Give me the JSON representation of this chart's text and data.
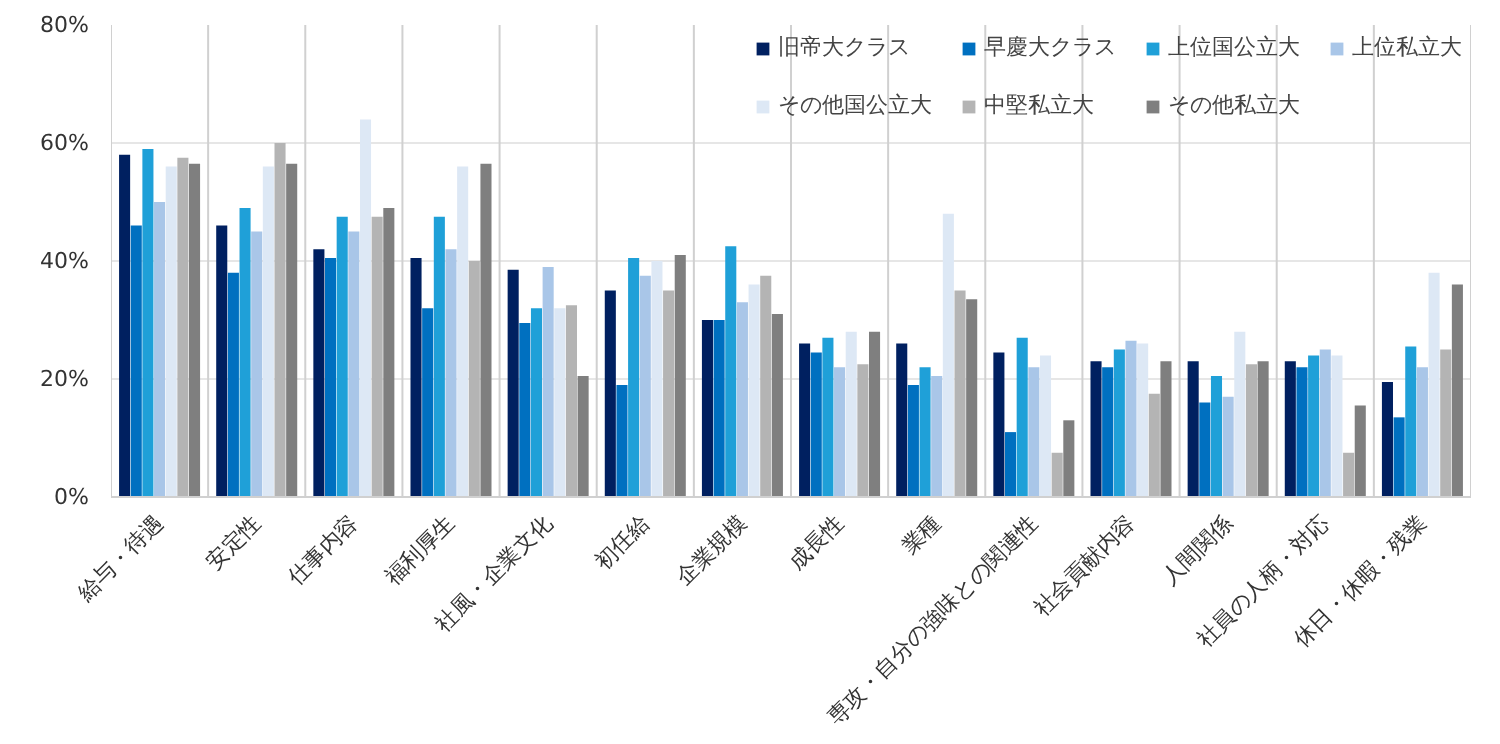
{
  "chart_data": {
    "type": "bar",
    "categories": [
      "給与・待遇",
      "安定性",
      "仕事内容",
      "福利厚生",
      "社風・企業文化",
      "初任給",
      "企業規模",
      "成長性",
      "業種",
      "専攻・自分の強味との関連性",
      "社会貢献内容",
      "人間関係",
      "社員の人柄・対応",
      "休日・休暇・残業"
    ],
    "series": [
      {
        "name": "旧帝大クラス",
        "color": "#002060",
        "values": [
          58,
          46,
          42,
          40.5,
          38.5,
          35,
          30,
          26,
          26,
          24.5,
          23,
          23,
          23,
          19.5
        ]
      },
      {
        "name": "早慶大クラス",
        "color": "#0070c0",
        "values": [
          46,
          38,
          40.5,
          32,
          29.5,
          19,
          30,
          24.5,
          19,
          11,
          22,
          16,
          22,
          13.5
        ]
      },
      {
        "name": "上位国公立大",
        "color": "#1fa0d8",
        "values": [
          59,
          49,
          47.5,
          47.5,
          32,
          40.5,
          42.5,
          27,
          22,
          27,
          25,
          20.5,
          24,
          25.5
        ]
      },
      {
        "name": "上位私立大",
        "color": "#a9c6e8",
        "values": [
          50,
          45,
          45,
          42,
          39,
          37.5,
          33,
          22,
          20.5,
          22,
          26.5,
          17,
          25,
          22
        ]
      },
      {
        "name": "その他国公立大",
        "color": "#dde8f5",
        "values": [
          56,
          56,
          64,
          56,
          32,
          40,
          36,
          28,
          48,
          24,
          26,
          28,
          24,
          38
        ]
      },
      {
        "name": "中堅私立大",
        "color": "#b4b4b4",
        "values": [
          57.5,
          60,
          47.5,
          40,
          32.5,
          35,
          37.5,
          22.5,
          35,
          7.5,
          17.5,
          22.5,
          7.5,
          25
        ]
      },
      {
        "name": "その他私立大",
        "color": "#7f7f7f",
        "values": [
          56.5,
          56.5,
          49,
          56.5,
          20.5,
          41,
          31,
          28,
          33.5,
          13,
          23,
          23,
          15.5,
          36
        ]
      }
    ],
    "ylim": [
      0,
      80
    ],
    "yticks": [
      {
        "value": 0,
        "label": "0%"
      },
      {
        "value": 20,
        "label": "20%"
      },
      {
        "value": 40,
        "label": "40%"
      },
      {
        "value": 60,
        "label": "60%"
      },
      {
        "value": 80,
        "label": "80%"
      }
    ],
    "grid": true,
    "legend": "top right"
  }
}
